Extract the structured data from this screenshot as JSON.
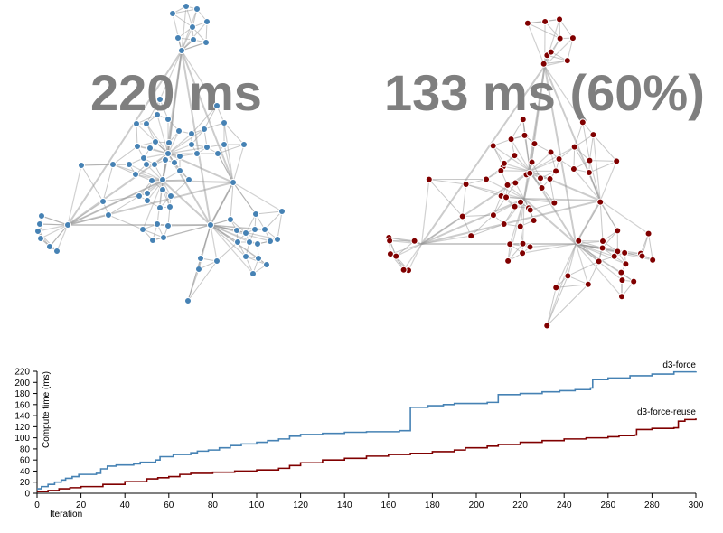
{
  "labels": {
    "left_time": "220 ms",
    "right_time": "133 ms (60%)"
  },
  "colors": {
    "d3_force": "#4682b4",
    "d3_force_reuse": "#800000",
    "link": "#999999",
    "big_label": "#7f7f7f"
  },
  "chart_data": {
    "type": "line",
    "title": "",
    "xlabel": "Iteration",
    "ylabel": "Compute time (ms)",
    "xlim": [
      0,
      300
    ],
    "ylim": [
      0,
      220
    ],
    "x_ticks": [
      0,
      20,
      40,
      60,
      80,
      100,
      120,
      140,
      160,
      180,
      200,
      220,
      240,
      260,
      280,
      300
    ],
    "y_ticks": [
      0,
      20,
      40,
      60,
      80,
      100,
      120,
      140,
      160,
      180,
      200,
      220
    ],
    "grid": false,
    "legend": "inline labels at line ends",
    "series": [
      {
        "name": "d3-force",
        "color": "#4682b4",
        "points": [
          [
            0,
            8
          ],
          [
            2,
            12
          ],
          [
            5,
            16
          ],
          [
            8,
            20
          ],
          [
            11,
            24
          ],
          [
            13,
            27
          ],
          [
            16,
            30
          ],
          [
            19,
            34
          ],
          [
            27,
            36
          ],
          [
            29,
            44
          ],
          [
            32,
            49
          ],
          [
            36,
            51
          ],
          [
            44,
            53
          ],
          [
            47,
            56
          ],
          [
            54,
            60
          ],
          [
            56,
            66
          ],
          [
            62,
            70
          ],
          [
            70,
            73
          ],
          [
            73,
            76
          ],
          [
            78,
            78
          ],
          [
            83,
            82
          ],
          [
            88,
            86
          ],
          [
            93,
            89
          ],
          [
            100,
            92
          ],
          [
            105,
            95
          ],
          [
            110,
            98
          ],
          [
            115,
            103
          ],
          [
            120,
            106
          ],
          [
            130,
            108
          ],
          [
            140,
            110
          ],
          [
            150,
            111
          ],
          [
            165,
            113
          ],
          [
            170,
            155
          ],
          [
            178,
            158
          ],
          [
            185,
            160
          ],
          [
            190,
            162
          ],
          [
            205,
            164
          ],
          [
            210,
            178
          ],
          [
            220,
            180
          ],
          [
            230,
            183
          ],
          [
            238,
            185
          ],
          [
            245,
            187
          ],
          [
            252,
            190
          ],
          [
            253,
            205
          ],
          [
            260,
            208
          ],
          [
            270,
            212
          ],
          [
            280,
            215
          ],
          [
            290,
            219
          ],
          [
            300,
            220
          ]
        ]
      },
      {
        "name": "d3-force-reuse",
        "color": "#800000",
        "points": [
          [
            0,
            3
          ],
          [
            5,
            5
          ],
          [
            10,
            8
          ],
          [
            15,
            10
          ],
          [
            20,
            12
          ],
          [
            30,
            16
          ],
          [
            40,
            21
          ],
          [
            50,
            26
          ],
          [
            55,
            28
          ],
          [
            60,
            30
          ],
          [
            65,
            34
          ],
          [
            70,
            36
          ],
          [
            80,
            38
          ],
          [
            90,
            40
          ],
          [
            100,
            42
          ],
          [
            110,
            45
          ],
          [
            115,
            50
          ],
          [
            120,
            55
          ],
          [
            130,
            60
          ],
          [
            140,
            63
          ],
          [
            150,
            67
          ],
          [
            160,
            70
          ],
          [
            170,
            72
          ],
          [
            180,
            75
          ],
          [
            190,
            78
          ],
          [
            195,
            82
          ],
          [
            205,
            85
          ],
          [
            210,
            88
          ],
          [
            220,
            92
          ],
          [
            230,
            95
          ],
          [
            240,
            98
          ],
          [
            250,
            100
          ],
          [
            260,
            102
          ],
          [
            265,
            104
          ],
          [
            272,
            105
          ],
          [
            273,
            115
          ],
          [
            280,
            117
          ],
          [
            290,
            118
          ],
          [
            292,
            130
          ],
          [
            295,
            133
          ],
          [
            300,
            135
          ]
        ]
      }
    ]
  }
}
